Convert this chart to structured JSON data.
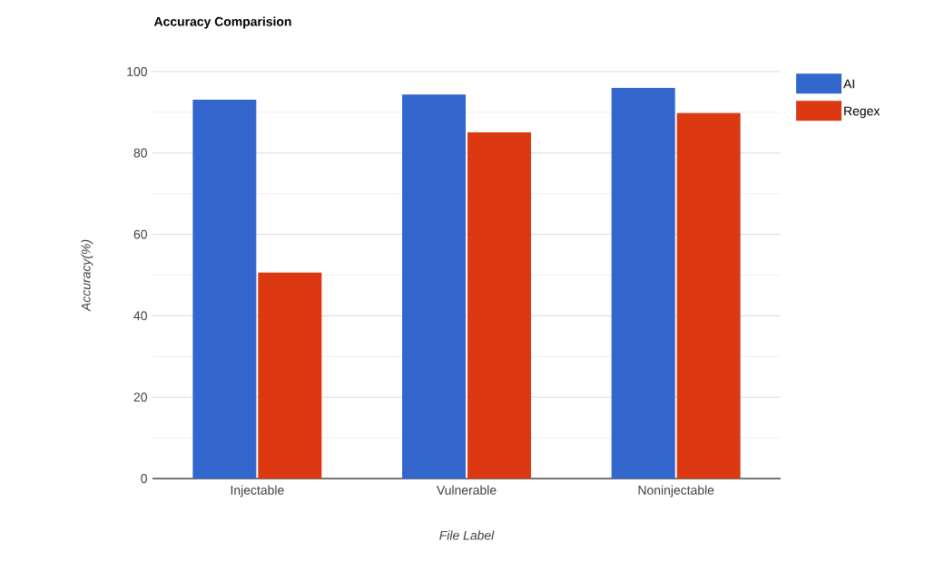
{
  "chart_data": {
    "type": "bar",
    "title": "Accuracy Comparision",
    "xlabel": "File Label",
    "ylabel": "Accuracy(%)",
    "categories": [
      "Injectable",
      "Vulnerable",
      "Noninjectable"
    ],
    "series": [
      {
        "name": "AI",
        "color": "#3366cc",
        "values": [
          93.1,
          94.4,
          96.0
        ]
      },
      {
        "name": "Regex",
        "color": "#dc3912",
        "values": [
          50.6,
          85.1,
          89.8
        ]
      }
    ],
    "ylim": [
      0,
      100
    ],
    "yticks": [
      0,
      20,
      40,
      60,
      80,
      100
    ],
    "grid": "y",
    "legend": "top right"
  }
}
